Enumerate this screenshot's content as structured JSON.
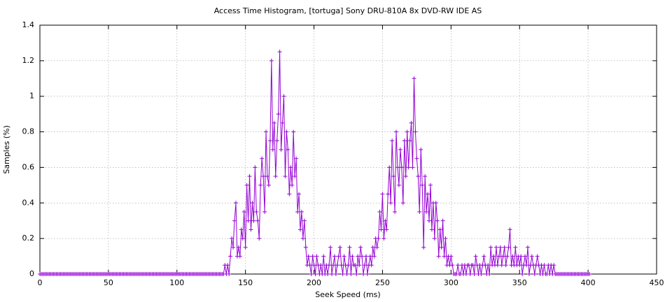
{
  "chart_data": {
    "type": "line",
    "title": "Access Time Histogram, [tortuga] Sony DRU-810A 8x DVD-RW IDE AS",
    "x_label": "Seek Speed (ms)",
    "y_label": "Samples (%)",
    "xlim": [
      0,
      450
    ],
    "xticks": [
      0,
      50,
      100,
      150,
      200,
      250,
      300,
      350,
      400,
      450
    ],
    "ylim": [
      0,
      1.4
    ],
    "yticks": [
      0,
      0.2,
      0.4,
      0.6,
      0.8,
      1,
      1.2,
      1.4
    ],
    "grid": true,
    "x": [
      0,
      1,
      2,
      3,
      4,
      5,
      6,
      7,
      8,
      9,
      10,
      11,
      12,
      13,
      14,
      15,
      16,
      17,
      18,
      19,
      20,
      21,
      22,
      23,
      24,
      25,
      26,
      27,
      28,
      29,
      30,
      31,
      32,
      33,
      34,
      35,
      36,
      37,
      38,
      39,
      40,
      41,
      42,
      43,
      44,
      45,
      46,
      47,
      48,
      49,
      50,
      51,
      52,
      53,
      54,
      55,
      56,
      57,
      58,
      59,
      60,
      61,
      62,
      63,
      64,
      65,
      66,
      67,
      68,
      69,
      70,
      71,
      72,
      73,
      74,
      75,
      76,
      77,
      78,
      79,
      80,
      81,
      82,
      83,
      84,
      85,
      86,
      87,
      88,
      89,
      90,
      91,
      92,
      93,
      94,
      95,
      96,
      97,
      98,
      99,
      100,
      101,
      102,
      103,
      104,
      105,
      106,
      107,
      108,
      109,
      110,
      111,
      112,
      113,
      114,
      115,
      116,
      117,
      118,
      119,
      120,
      121,
      122,
      123,
      124,
      125,
      126,
      127,
      128,
      129,
      130,
      131,
      132,
      133,
      134,
      135,
      136,
      137,
      138,
      139,
      140,
      141,
      142,
      143,
      144,
      145,
      146,
      147,
      148,
      149,
      150,
      151,
      152,
      153,
      154,
      155,
      156,
      157,
      158,
      159,
      160,
      161,
      162,
      163,
      164,
      165,
      166,
      167,
      168,
      169,
      170,
      171,
      172,
      173,
      174,
      175,
      176,
      177,
      178,
      179,
      180,
      181,
      182,
      183,
      184,
      185,
      186,
      187,
      188,
      189,
      190,
      191,
      192,
      193,
      194,
      195,
      196,
      197,
      198,
      199,
      200,
      201,
      202,
      203,
      204,
      205,
      206,
      207,
      208,
      209,
      210,
      211,
      212,
      213,
      214,
      215,
      216,
      217,
      218,
      219,
      220,
      221,
      222,
      223,
      224,
      225,
      226,
      227,
      228,
      229,
      230,
      231,
      232,
      233,
      234,
      235,
      236,
      237,
      238,
      239,
      240,
      241,
      242,
      243,
      244,
      245,
      246,
      247,
      248,
      249,
      250,
      251,
      252,
      253,
      254,
      255,
      256,
      257,
      258,
      259,
      260,
      261,
      262,
      263,
      264,
      265,
      266,
      267,
      268,
      269,
      270,
      271,
      272,
      273,
      274,
      275,
      276,
      277,
      278,
      279,
      280,
      281,
      282,
      283,
      284,
      285,
      286,
      287,
      288,
      289,
      290,
      291,
      292,
      293,
      294,
      295,
      296,
      297,
      298,
      299,
      300,
      301,
      302,
      303,
      304,
      305,
      306,
      307,
      308,
      309,
      310,
      311,
      312,
      313,
      314,
      315,
      316,
      317,
      318,
      319,
      320,
      321,
      322,
      323,
      324,
      325,
      326,
      327,
      328,
      329,
      330,
      331,
      332,
      333,
      334,
      335,
      336,
      337,
      338,
      339,
      340,
      341,
      342,
      343,
      344,
      345,
      346,
      347,
      348,
      349,
      350,
      351,
      352,
      353,
      354,
      355,
      356,
      357,
      358,
      359,
      360,
      361,
      362,
      363,
      364,
      365,
      366,
      367,
      368,
      369,
      370,
      371,
      372,
      373,
      374,
      375,
      376,
      377,
      378,
      379,
      380,
      381,
      382,
      383,
      384,
      385,
      386,
      387,
      388,
      389,
      390,
      391,
      392,
      393,
      394,
      395,
      396,
      397,
      398,
      399,
      400,
      401
    ],
    "series": [
      {
        "color": "#9400d3",
        "values": [
          0,
          0,
          0,
          0,
          0,
          0,
          0,
          0,
          0,
          0,
          0,
          0,
          0,
          0,
          0,
          0,
          0,
          0,
          0,
          0,
          0,
          0,
          0,
          0,
          0,
          0,
          0,
          0,
          0,
          0,
          0,
          0,
          0,
          0,
          0,
          0,
          0,
          0,
          0,
          0,
          0,
          0,
          0,
          0,
          0,
          0,
          0,
          0,
          0,
          0,
          0,
          0,
          0,
          0,
          0,
          0,
          0,
          0,
          0,
          0,
          0,
          0,
          0,
          0,
          0,
          0,
          0,
          0,
          0,
          0,
          0,
          0,
          0,
          0,
          0,
          0,
          0,
          0,
          0,
          0,
          0,
          0,
          0,
          0,
          0,
          0,
          0,
          0,
          0,
          0,
          0,
          0,
          0,
          0,
          0,
          0,
          0,
          0,
          0,
          0,
          0,
          0,
          0,
          0,
          0,
          0,
          0,
          0,
          0,
          0,
          0,
          0,
          0,
          0,
          0,
          0,
          0,
          0,
          0,
          0,
          0,
          0,
          0,
          0,
          0,
          0,
          0,
          0,
          0,
          0,
          0,
          0,
          0,
          0,
          0,
          0.05,
          0,
          0.05,
          0,
          0.1,
          0.2,
          0.15,
          0.3,
          0.4,
          0.1,
          0.15,
          0.1,
          0.25,
          0.2,
          0.35,
          0.15,
          0.5,
          0.3,
          0.55,
          0.25,
          0.4,
          0.3,
          0.6,
          0.35,
          0.3,
          0.2,
          0.5,
          0.65,
          0.55,
          0.35,
          0.8,
          0.55,
          0.5,
          0.75,
          1.2,
          0.7,
          0.85,
          0.55,
          0.75,
          0.9,
          1.25,
          0.7,
          0.85,
          1,
          0.55,
          0.8,
          0.7,
          0.45,
          0.6,
          0.5,
          0.8,
          0.55,
          0.65,
          0.35,
          0.45,
          0.25,
          0.35,
          0.2,
          0.3,
          0.15,
          0.05,
          0.1,
          0.05,
          0,
          0.1,
          0.05,
          0,
          0.1,
          0.05,
          0,
          0.05,
          0,
          0.1,
          0,
          0.05,
          0,
          0.05,
          0.15,
          0,
          0.05,
          0.1,
          0,
          0.05,
          0.1,
          0.15,
          0.05,
          0,
          0.1,
          0.05,
          0,
          0.05,
          0.15,
          0,
          0.1,
          0.05,
          0.05,
          0,
          0.1,
          0.05,
          0.15,
          0.1,
          0,
          0.05,
          0.1,
          0,
          0.05,
          0.1,
          0.05,
          0.15,
          0.1,
          0.2,
          0.15,
          0.2,
          0.35,
          0.25,
          0.45,
          0.2,
          0.3,
          0.25,
          0.45,
          0.6,
          0.4,
          0.75,
          0.55,
          0.35,
          0.8,
          0.6,
          0.5,
          0.7,
          0.6,
          0.4,
          0.75,
          0.55,
          0.8,
          0.6,
          0.75,
          0.85,
          0.6,
          1.1,
          0.8,
          0.65,
          0.55,
          0.35,
          0.7,
          0.5,
          0.15,
          0.55,
          0.35,
          0.45,
          0.3,
          0.5,
          0.25,
          0.4,
          0.2,
          0.4,
          0.3,
          0.1,
          0.25,
          0.15,
          0.3,
          0.1,
          0.2,
          0.05,
          0.1,
          0.05,
          0.1,
          0.05,
          0,
          0,
          0,
          0.05,
          0,
          0,
          0.05,
          0,
          0.05,
          0,
          0.05,
          0.05,
          0,
          0.05,
          0.05,
          0,
          0.1,
          0.05,
          0,
          0.05,
          0,
          0.05,
          0.1,
          0.05,
          0,
          0.05,
          0,
          0.15,
          0.05,
          0.1,
          0.05,
          0.15,
          0.05,
          0.1,
          0.15,
          0.05,
          0.1,
          0.15,
          0.05,
          0.1,
          0.15,
          0.25,
          0.05,
          0.1,
          0.05,
          0.15,
          0.05,
          0.1,
          0.05,
          0.1,
          0,
          0.05,
          0.1,
          0.05,
          0.15,
          0,
          0.05,
          0.1,
          0.05,
          0,
          0.05,
          0.1,
          0.05,
          0,
          0.05,
          0,
          0.05,
          0,
          0,
          0.05,
          0,
          0.05,
          0,
          0.05,
          0,
          0,
          0,
          0,
          0,
          0,
          0,
          0,
          0,
          0,
          0,
          0,
          0,
          0,
          0,
          0,
          0,
          0,
          0,
          0,
          0,
          0,
          0,
          0,
          0,
          0
        ]
      }
    ]
  }
}
